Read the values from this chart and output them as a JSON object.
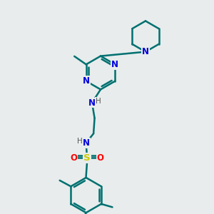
{
  "bg_color": "#e8ecec",
  "atom_colors": {
    "N": "#0000dd",
    "S": "#cccc00",
    "O": "#ff0000",
    "C": "#007070",
    "H_label": "#555555"
  },
  "bond_color": "#007070",
  "figsize": [
    3.0,
    3.0
  ],
  "dpi": 100
}
